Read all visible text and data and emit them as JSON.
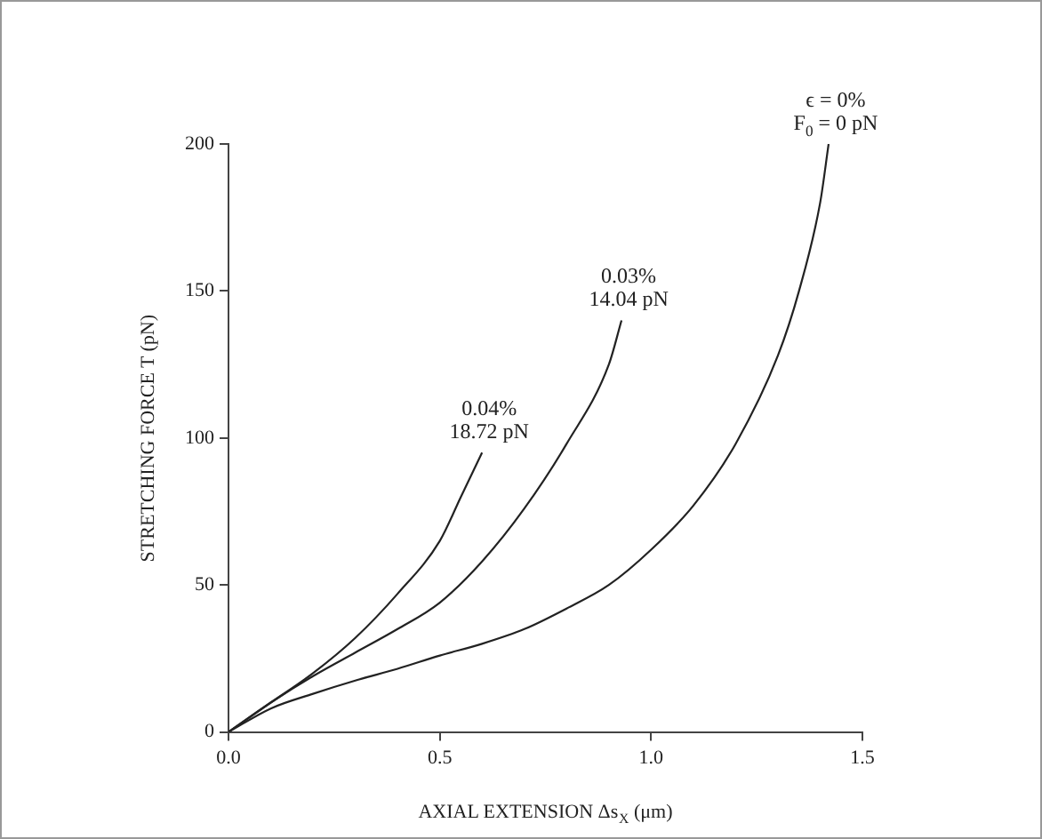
{
  "chart_data": {
    "type": "line",
    "xlabel": "AXIAL EXTENSION Δs$_{X}$ (μm)",
    "ylabel": "STRETCHING FORCE T (pN)",
    "xlim": [
      0,
      1.5
    ],
    "xticks": [
      {
        "value": 0,
        "label": "0.0"
      },
      {
        "value": 0.5,
        "label": "0.5"
      },
      {
        "value": 1,
        "label": "1.0"
      },
      {
        "value": 1.5,
        "label": "1.5"
      }
    ],
    "ylim": [
      0,
      200
    ],
    "yticks": [
      0,
      50,
      100,
      150,
      200
    ],
    "grid": false,
    "legend": false,
    "marker": "none",
    "line_style": "solid",
    "series": [
      {
        "name": "0.04%\n18.72 pN",
        "color": "#222222",
        "x": [
          0,
          0.1,
          0.2,
          0.3,
          0.4,
          0.5,
          0.55,
          0.6
        ],
        "values": [
          0,
          10,
          20,
          32,
          47,
          65,
          80,
          95
        ]
      },
      {
        "name": "0.03%\n14.04 pN",
        "color": "#222222",
        "x": [
          0,
          0.1,
          0.2,
          0.3,
          0.4,
          0.5,
          0.6,
          0.7,
          0.8,
          0.9,
          0.93
        ],
        "values": [
          0,
          10,
          19,
          27,
          35,
          44,
          58,
          76,
          98,
          125,
          140
        ]
      },
      {
        "name": "ϵ = 0%\nF$_{0}$ = 0 pN",
        "color": "#222222",
        "x": [
          0,
          0.1,
          0.2,
          0.3,
          0.4,
          0.5,
          0.6,
          0.7,
          0.8,
          0.9,
          1.0,
          1.1,
          1.2,
          1.3,
          1.35,
          1.4,
          1.42
        ],
        "values": [
          0,
          8,
          13,
          17.5,
          21.5,
          26,
          30,
          35,
          42,
          50,
          62,
          77,
          98,
          128,
          150,
          180,
          200
        ]
      }
    ]
  }
}
